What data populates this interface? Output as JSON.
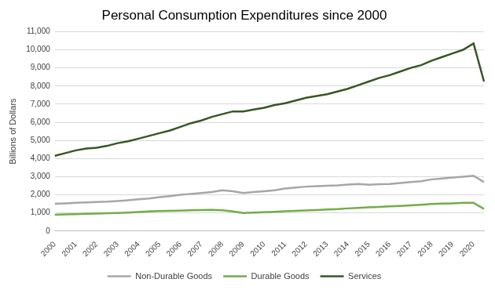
{
  "chart_data": {
    "type": "line",
    "title": "Personal Consumption Expenditures since 2000",
    "y_label": "Billions of Dollars",
    "categories": [
      "2000",
      null,
      "2001",
      null,
      "2002",
      null,
      "2003",
      null,
      "2004",
      null,
      "2005",
      null,
      "2006",
      null,
      "2007",
      null,
      "2008",
      null,
      "2009",
      null,
      "2010",
      null,
      "2011",
      null,
      "2012",
      null,
      "2013",
      null,
      "2014",
      null,
      "2015",
      null,
      "2016",
      null,
      "2017",
      null,
      "2018",
      null,
      "2019",
      null,
      "2020",
      null
    ],
    "series": [
      {
        "name": "Non-Durable Goods",
        "color": "#a6a6a6",
        "values": [
          1500,
          1530,
          1560,
          1580,
          1600,
          1620,
          1660,
          1700,
          1750,
          1800,
          1870,
          1930,
          2000,
          2050,
          2100,
          2150,
          2250,
          2200,
          2100,
          2150,
          2200,
          2250,
          2350,
          2400,
          2450,
          2480,
          2500,
          2520,
          2560,
          2600,
          2550,
          2580,
          2600,
          2650,
          2700,
          2750,
          2850,
          2900,
          2950,
          3000,
          3050,
          2700
        ]
      },
      {
        "name": "Durable Goods",
        "color": "#70ad47",
        "values": [
          900,
          920,
          930,
          950,
          960,
          980,
          1000,
          1020,
          1050,
          1080,
          1100,
          1120,
          1130,
          1150,
          1160,
          1170,
          1150,
          1080,
          1000,
          1020,
          1040,
          1060,
          1090,
          1110,
          1140,
          1160,
          1190,
          1210,
          1250,
          1280,
          1310,
          1330,
          1360,
          1390,
          1420,
          1450,
          1490,
          1510,
          1530,
          1560,
          1560,
          1220
        ]
      },
      {
        "name": "Services",
        "color": "#375623",
        "values": [
          4150,
          4300,
          4450,
          4550,
          4600,
          4700,
          4850,
          4950,
          5100,
          5250,
          5400,
          5550,
          5750,
          5950,
          6100,
          6300,
          6450,
          6600,
          6600,
          6700,
          6800,
          6950,
          7050,
          7200,
          7350,
          7450,
          7550,
          7700,
          7850,
          8050,
          8250,
          8450,
          8600,
          8800,
          9000,
          9150,
          9400,
          9600,
          9800,
          10000,
          10350,
          8250
        ]
      }
    ],
    "ylim": [
      0,
      11000
    ],
    "yticks": [
      0,
      {
        "value": 1000,
        "label": "1,000"
      },
      {
        "value": 2000,
        "label": "2,000"
      },
      {
        "value": 3000,
        "label": "3,000"
      },
      {
        "value": 4000,
        "label": "4,000"
      },
      {
        "value": 5000,
        "label": "5,000"
      },
      {
        "value": 6000,
        "label": "6,000"
      },
      {
        "value": 7000,
        "label": "7,000"
      },
      {
        "value": 8000,
        "label": "8,000"
      },
      {
        "value": 9000,
        "label": "9,000"
      },
      {
        "value": 10000,
        "label": "10,000"
      },
      {
        "value": 11000,
        "label": "11,000"
      }
    ],
    "grid": true,
    "legend": "bottom"
  }
}
